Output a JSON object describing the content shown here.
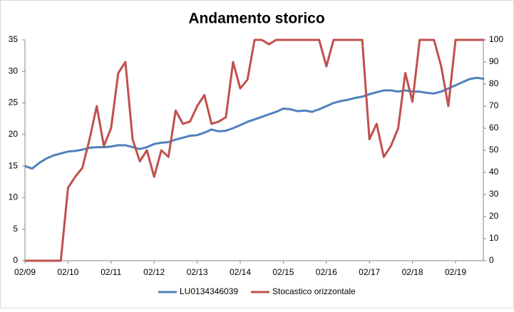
{
  "chart_data": {
    "type": "line",
    "title": "Andamento storico",
    "categories": [
      "02/09",
      null,
      null,
      null,
      null,
      null,
      "02/10",
      null,
      null,
      null,
      null,
      null,
      "02/11",
      null,
      null,
      null,
      null,
      null,
      "02/12",
      null,
      null,
      null,
      null,
      null,
      "02/13",
      null,
      null,
      null,
      null,
      null,
      "02/14",
      null,
      null,
      null,
      null,
      null,
      "02/15",
      null,
      null,
      null,
      null,
      null,
      "02/16",
      null,
      null,
      null,
      null,
      null,
      "02/17",
      null,
      null,
      null,
      null,
      null,
      "02/18",
      null,
      null,
      null,
      null,
      null,
      "02/19",
      null,
      null,
      null,
      null
    ],
    "series": [
      {
        "name": "LU0134346039",
        "color": "#4f81bd",
        "values": [
          15.0,
          14.6,
          15.5,
          16.2,
          16.7,
          17.0,
          17.3,
          17.4,
          17.6,
          17.9,
          18.0,
          18.0,
          18.1,
          18.3,
          18.3,
          18.0,
          17.7,
          18.0,
          18.5,
          18.7,
          18.8,
          19.2,
          19.5,
          19.8,
          19.9,
          20.3,
          20.8,
          20.5,
          20.6,
          21.0,
          21.5,
          22.0,
          22.4,
          22.8,
          23.2,
          23.6,
          24.1,
          24.0,
          23.7,
          23.8,
          23.6,
          24.0,
          24.5,
          25.0,
          25.3,
          25.5,
          25.8,
          26.0,
          26.4,
          26.7,
          27.0,
          27.0,
          26.8,
          27.0,
          26.8,
          26.8,
          26.6,
          26.5,
          26.8,
          27.3,
          27.8,
          28.3,
          28.8,
          29.0,
          28.8
        ]
      },
      {
        "name": "Stocastico orizzontale",
        "color": "#c0504d",
        "axis": "y2",
        "values": [
          0,
          0,
          0,
          0,
          0,
          0,
          33,
          38,
          42,
          55,
          70,
          52,
          60,
          85,
          90,
          55,
          45,
          50,
          38,
          50,
          47,
          68,
          62,
          63,
          70,
          75,
          62,
          63,
          65,
          90,
          78,
          82,
          100,
          100,
          98,
          100,
          100,
          100,
          100,
          100,
          100,
          100,
          88,
          100,
          100,
          100,
          100,
          100,
          55,
          62,
          47,
          52,
          60,
          85,
          72,
          100,
          100,
          100,
          88,
          70,
          100,
          100,
          100,
          100,
          100
        ]
      }
    ],
    "ylim": [
      0,
      35
    ],
    "yticks": [
      0,
      5,
      10,
      15,
      20,
      25,
      30,
      35
    ],
    "y2lim": [
      0,
      100
    ],
    "y2ticks": [
      0,
      10,
      20,
      30,
      40,
      50,
      60,
      70,
      80,
      90,
      100
    ],
    "legend": "bottom"
  }
}
